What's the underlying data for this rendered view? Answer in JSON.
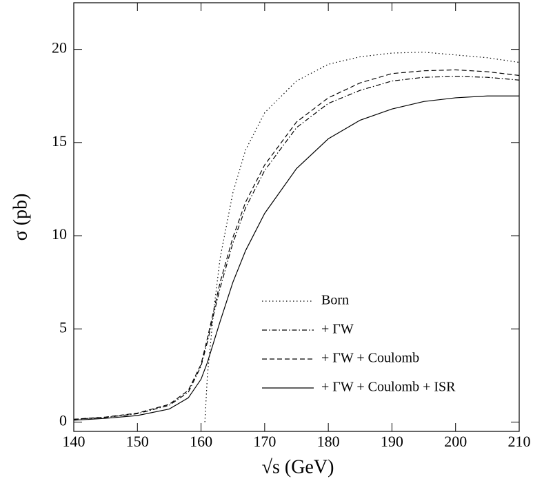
{
  "chart_data": {
    "type": "line",
    "x_label": "√s  (GeV)",
    "y_label": "σ  (pb)",
    "xlim": [
      140,
      210
    ],
    "xticks": [
      140,
      150,
      160,
      170,
      180,
      190,
      200,
      210
    ],
    "ylim": [
      -0.5,
      22.5
    ],
    "yticks": [
      0,
      5,
      10,
      15,
      20
    ],
    "legend": "lower right",
    "series": [
      {
        "name": "Born",
        "color": "#000000",
        "line_style": "dotted",
        "x": [
          160.6,
          161,
          162,
          163,
          165,
          167,
          170,
          175,
          180,
          185,
          190,
          195,
          200,
          205,
          210
        ],
        "values": [
          0,
          2.5,
          6,
          8.8,
          12.3,
          14.6,
          16.6,
          18.3,
          19.2,
          19.6,
          19.8,
          19.85,
          19.7,
          19.55,
          19.3
        ]
      },
      {
        "name": "+ ΓW",
        "color": "#000000",
        "line_style": "dashdot",
        "x": [
          140,
          145,
          150,
          155,
          158,
          160,
          161,
          162,
          163,
          165,
          167,
          170,
          175,
          180,
          185,
          190,
          195,
          200,
          205,
          210
        ],
        "values": [
          0.15,
          0.25,
          0.45,
          0.9,
          1.6,
          3,
          4.3,
          5.8,
          7.2,
          9.6,
          11.5,
          13.5,
          15.8,
          17.1,
          17.8,
          18.3,
          18.5,
          18.55,
          18.5,
          18.35
        ]
      },
      {
        "name": "+ ΓW + Coulomb",
        "color": "#000000",
        "line_style": "dashed",
        "x": [
          140,
          145,
          150,
          155,
          158,
          160,
          161,
          162,
          163,
          165,
          167,
          170,
          175,
          180,
          185,
          190,
          195,
          200,
          205,
          210
        ],
        "values": [
          0.15,
          0.27,
          0.48,
          0.95,
          1.7,
          3.1,
          4.5,
          6,
          7.5,
          9.9,
          11.8,
          13.8,
          16.1,
          17.4,
          18.2,
          18.7,
          18.85,
          18.9,
          18.8,
          18.6
        ]
      },
      {
        "name": "+ ΓW + Coulomb + ISR",
        "color": "#000000",
        "line_style": "solid",
        "x": [
          140,
          145,
          150,
          155,
          158,
          160,
          161,
          162,
          163,
          165,
          167,
          170,
          175,
          180,
          185,
          190,
          195,
          200,
          205,
          210
        ],
        "values": [
          0.1,
          0.2,
          0.35,
          0.7,
          1.3,
          2.3,
          3.2,
          4.3,
          5.4,
          7.5,
          9.2,
          11.2,
          13.6,
          15.2,
          16.2,
          16.8,
          17.2,
          17.4,
          17.5,
          17.5
        ]
      }
    ]
  }
}
